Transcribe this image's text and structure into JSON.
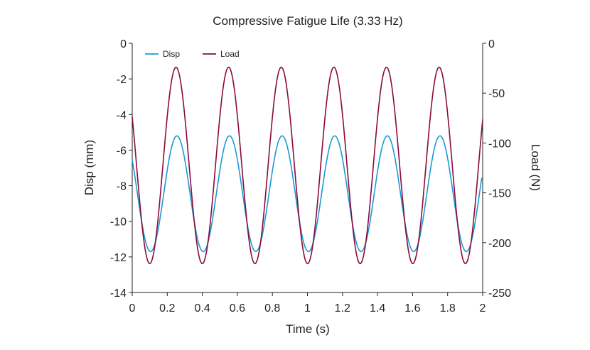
{
  "chart_data": {
    "type": "line",
    "title": "Compressive Fatigue Life (3.33 Hz)",
    "xlabel": "Time (s)",
    "ylabel_left": "Disp (mm)",
    "ylabel_right": "Load (N)",
    "xlim": [
      0,
      2
    ],
    "ylim_left": [
      -14,
      0
    ],
    "ylim_right": [
      -250,
      0
    ],
    "x_ticks": [
      0,
      0.2,
      0.4,
      0.6,
      0.8,
      1,
      1.2,
      1.4,
      1.6,
      1.8,
      2
    ],
    "x_tick_labels": [
      "0",
      "0.2",
      "0.4",
      "0.6",
      "0.8",
      "1",
      "1.2",
      "1.4",
      "1.6",
      "1.8",
      "2"
    ],
    "y_left_ticks": [
      0,
      -2,
      -4,
      -6,
      -8,
      -10,
      -12,
      -14
    ],
    "y_left_tick_labels": [
      "0",
      "-2",
      "-4",
      "-6",
      "-8",
      "-10",
      "-12",
      "-14"
    ],
    "y_right_ticks": [
      0,
      -50,
      -100,
      -150,
      -200,
      -250
    ],
    "y_right_tick_labels": [
      "0",
      "-50",
      "-100",
      "-150",
      "-200",
      "-250"
    ],
    "grid": false,
    "legend_position": "top-left",
    "series": [
      {
        "name": "Disp",
        "axis": "left",
        "color": "#1a9ad6",
        "waveform": "sine",
        "mean": -8.45,
        "amplitude": 3.25,
        "frequency_hz": 3.33,
        "peak_time_s": 0.255,
        "x_end": 1.995
      },
      {
        "name": "Load",
        "axis": "right",
        "color": "#8b0a3c",
        "waveform": "sine",
        "mean": -122.5,
        "amplitude": 98.5,
        "frequency_hz": 3.33,
        "peak_time_s": 0.25,
        "x_end": 2.0
      }
    ]
  }
}
